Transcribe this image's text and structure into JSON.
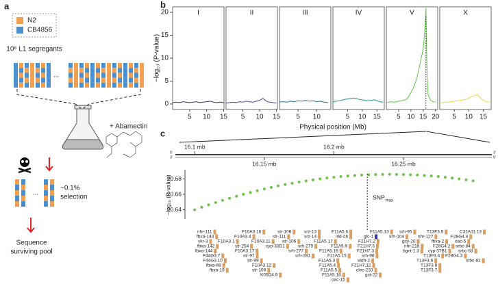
{
  "panel_a": {
    "label": "a",
    "legend": [
      {
        "name": "N2",
        "color": "#f0a050"
      },
      {
        "name": "CB4856",
        "color": "#4a8fd0"
      }
    ],
    "population": "10⁶ L1 segregants",
    "ellipsis": "...",
    "treatment": "+ Abamectin",
    "selection": [
      "~0.1%",
      "selection"
    ],
    "result": [
      "Sequence",
      "surviving pool"
    ]
  },
  "chart_data": [
    {
      "type": "line",
      "label": "b",
      "ylabel": "−log₁₀ (P-value)",
      "xlabel": "Physical position (Mb)",
      "ylim": [
        -1.2,
        21.2
      ],
      "yticks": [
        0,
        5,
        10,
        15,
        20
      ],
      "facets": [
        {
          "name": "I",
          "color": "#4b2a6e",
          "xlim": [
            0,
            15.1
          ],
          "xticks": [
            5,
            10,
            15
          ],
          "x": [
            0,
            1,
            2,
            3,
            4,
            5,
            6,
            7,
            8,
            9,
            10,
            11,
            12,
            13,
            14,
            15
          ],
          "values": [
            0.3,
            0.4,
            0.3,
            0.5,
            0.4,
            0.3,
            0.4,
            0.5,
            0.3,
            0.4,
            0.5,
            0.6,
            0.4,
            0.3,
            0.4,
            0.3
          ]
        },
        {
          "name": "II",
          "color": "#3f4c8a",
          "xlim": [
            0,
            15.3
          ],
          "xticks": [
            5,
            10,
            15
          ],
          "x": [
            0,
            1,
            2,
            3,
            4,
            5,
            6,
            7,
            8,
            9,
            10,
            11,
            12,
            13,
            14,
            15
          ],
          "values": [
            0.2,
            0.3,
            0.4,
            0.3,
            0.5,
            0.4,
            0.6,
            0.5,
            0.4,
            0.6,
            0.8,
            1.2,
            0.6,
            0.4,
            0.3,
            0.2
          ]
        },
        {
          "name": "III",
          "color": "#2e6e8e",
          "xlim": [
            0,
            13.8
          ],
          "xticks": [
            5,
            10
          ],
          "x": [
            0,
            1,
            2,
            3,
            4,
            5,
            6,
            7,
            8,
            9,
            10,
            11,
            12,
            13
          ],
          "values": [
            0.4,
            0.5,
            0.4,
            0.6,
            0.5,
            0.7,
            0.6,
            0.8,
            0.6,
            0.7,
            0.5,
            0.6,
            0.4,
            0.3
          ]
        },
        {
          "name": "IV",
          "color": "#25918c",
          "xlim": [
            0,
            17.5
          ],
          "xticks": [
            5,
            10,
            15
          ],
          "x": [
            0,
            1,
            2,
            3,
            4,
            5,
            6,
            7,
            8,
            9,
            10,
            11,
            12,
            13,
            14,
            15,
            16,
            17
          ],
          "values": [
            0.5,
            0.6,
            0.7,
            0.8,
            1.0,
            1.1,
            1.2,
            1.3,
            1.2,
            1.0,
            0.9,
            0.8,
            0.7,
            0.8,
            0.9,
            0.7,
            0.5,
            0.4
          ]
        },
        {
          "name": "V",
          "color": "#63c24a",
          "xlim": [
            0,
            20.9
          ],
          "xticks": [
            5,
            10,
            15,
            20
          ],
          "peak_x": 16.1,
          "x": [
            0,
            1,
            2,
            3,
            4,
            5,
            6,
            7,
            8,
            9,
            10,
            11,
            12,
            13,
            14,
            15,
            15.5,
            16,
            16.1,
            16.3,
            16.6,
            17,
            18,
            19,
            20
          ],
          "values": [
            0.3,
            0.4,
            0.5,
            0.4,
            0.5,
            0.6,
            0.7,
            0.8,
            1.0,
            1.5,
            2.5,
            3.5,
            5,
            7,
            9.5,
            12,
            15,
            19,
            21,
            14,
            6,
            2,
            0.8,
            0.5,
            0.4
          ]
        },
        {
          "name": "X",
          "color": "#e6dc3c",
          "xlim": [
            0,
            17.7
          ],
          "xticks": [
            5,
            10,
            15
          ],
          "x": [
            0,
            1,
            2,
            3,
            4,
            5,
            6,
            7,
            8,
            9,
            10,
            11,
            12,
            13,
            14,
            15,
            16,
            17
          ],
          "values": [
            0.3,
            0.3,
            0.4,
            0.4,
            0.5,
            0.6,
            0.7,
            0.8,
            0.9,
            1.0,
            1.3,
            1.6,
            1.9,
            2.0,
            1.4,
            0.8,
            0.5,
            0.4
          ]
        }
      ]
    },
    {
      "type": "scatter",
      "label": "c",
      "ylabel": "−log₁₀ (P-value)",
      "color": "#6cc24a",
      "xlim": [
        16.093,
        16.312
      ],
      "xticks": [
        {
          "value": 16.1,
          "label": "16.1 mb"
        },
        {
          "value": 16.15,
          "label": "16.15 mb"
        },
        {
          "value": 16.2,
          "label": "16.2 mb"
        },
        {
          "value": 16.25,
          "label": "16.25 mb"
        }
      ],
      "ruler_ends": {
        "left": [
          "5′",
          "3′"
        ],
        "right": [
          "3′",
          "5′"
        ]
      },
      "ylim": [
        20.628,
        20.692
      ],
      "yticks": [
        20.64,
        20.66,
        20.68
      ],
      "x": [
        16.1,
        16.105,
        16.11,
        16.115,
        16.12,
        16.125,
        16.13,
        16.135,
        16.14,
        16.145,
        16.15,
        16.155,
        16.16,
        16.165,
        16.17,
        16.175,
        16.18,
        16.185,
        16.19,
        16.195,
        16.2,
        16.205,
        16.21,
        16.215,
        16.22,
        16.225,
        16.23,
        16.235,
        16.24,
        16.245,
        16.25,
        16.255,
        16.26,
        16.265,
        16.27,
        16.275,
        16.28,
        16.285,
        16.29,
        16.295,
        16.3
      ],
      "values": [
        20.6399,
        20.6432,
        20.6463,
        20.6493,
        20.6522,
        20.6549,
        20.6576,
        20.6601,
        20.6625,
        20.6648,
        20.667,
        20.669,
        20.671,
        20.6728,
        20.6745,
        20.6761,
        20.6775,
        20.6789,
        20.6801,
        20.6812,
        20.6822,
        20.6831,
        20.6839,
        20.6845,
        20.6851,
        20.6855,
        20.6858,
        20.6859,
        20.686,
        20.6859,
        20.6858,
        20.6855,
        20.6851,
        20.6845,
        20.6839,
        20.6831,
        20.6822,
        20.6812,
        20.6801,
        20.6789,
        20.6775
      ],
      "annotation": {
        "text": "SNP",
        "sub": "max",
        "x": 16.224
      },
      "genes": {
        "color": "#d9a066",
        "highlight": "glc-1",
        "highlight_color": "#2b3a9a",
        "rows": [
          [
            "nhr-111",
            "F10A3.16",
            "str-108",
            "srz-13",
            "F11A5.6",
            "F11A5.13",
            "srh-95",
            "T13F3.9",
            "C31A11.13"
          ],
          [
            "fbxa-143",
            "F10A3.4",
            "str-111",
            "srz-14",
            "irld-26",
            "glc-1",
            "srh-104",
            "nhr-127",
            "F28G4.4"
          ],
          [
            "skr-3",
            "F10A3.1",
            "F10A3.11",
            "str-106",
            "F11A5.17",
            "F21H7.2",
            "gcy-20",
            "fbxa-2",
            "oac-5"
          ],
          [
            "fbxa-142",
            "str-254",
            "cyp-33D1",
            "srh-279",
            "F11A5.9",
            "F21H7.5",
            "nhr-218",
            "F28G4.2",
            "srbc-84"
          ],
          [
            "fbxa-144",
            "F10A3.17",
            "srh-277",
            "F11A5.16",
            "F21H7.3",
            "bgnt-1.3",
            "cyp-37B1",
            "srbc-83"
          ],
          [
            "F44G3.7",
            "str-97",
            "srh-281",
            "F11A5.15",
            "srh-98",
            "T13F3.4",
            "F28G4.3"
          ],
          [
            "F44G3.10",
            "str-99",
            "F11A5.3",
            "stdh-2",
            "T13F3.6",
            "srbc-82"
          ],
          [
            "fbxa-88",
            "F10A3.12",
            "F11A5.4",
            "F21H7.12",
            "T13F3.8"
          ],
          [
            "fbxa-19",
            "str-109",
            "F11A5.5",
            "clec-233",
            "T13F3.7"
          ],
          [
            "K05D4.9",
            "F11A5.18",
            "gst-22"
          ],
          [
            "oac-15"
          ]
        ]
      }
    }
  ]
}
